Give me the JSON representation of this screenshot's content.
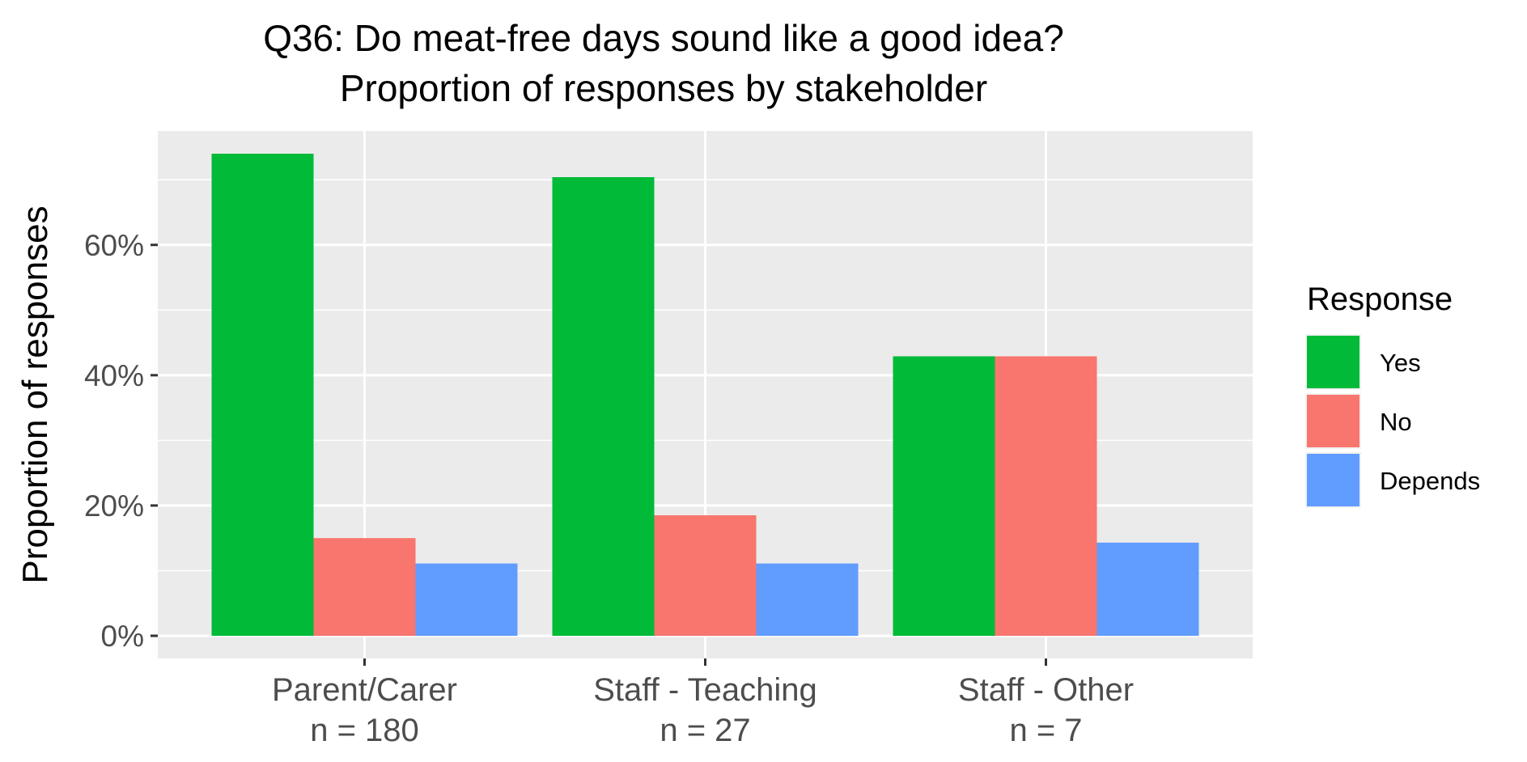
{
  "chart_data": {
    "type": "bar",
    "title": "Q36: Do meat-free days sound like a good idea?",
    "subtitle": "Proportion of responses by stakeholder",
    "ylabel": "Proportion of responses",
    "xlabel": "",
    "categories": [
      {
        "name": "Parent/Carer",
        "n_label": "n = 180"
      },
      {
        "name": "Staff - Teaching",
        "n_label": "n = 27"
      },
      {
        "name": "Staff - Other",
        "n_label": "n = 7"
      }
    ],
    "series": [
      {
        "name": "Yes",
        "color": "#00BA38",
        "values": [
          74,
          70.4,
          42.9
        ]
      },
      {
        "name": "No",
        "color": "#F8766D",
        "values": [
          15,
          18.5,
          42.9
        ]
      },
      {
        "name": "Depends",
        "color": "#619CFF",
        "values": [
          11.1,
          11.1,
          14.3
        ]
      }
    ],
    "yticks": [
      "0%",
      "20%",
      "40%",
      "60%"
    ],
    "ylim": [
      0,
      77.6
    ],
    "grid": true,
    "legend": {
      "title": "Response",
      "position": "right"
    }
  }
}
